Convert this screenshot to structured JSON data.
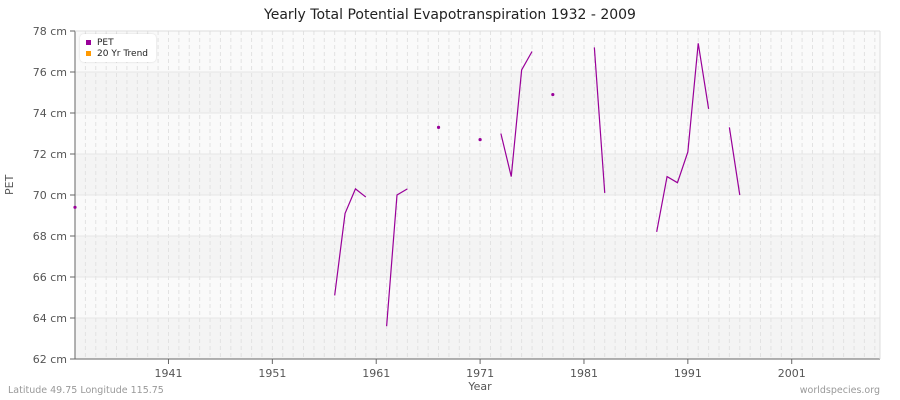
{
  "title": "Yearly Total Potential Evapotranspiration 1932 - 2009",
  "footer": {
    "left": "Latitude 49.75 Longitude 115.75",
    "right": "worldspecies.org"
  },
  "axis": {
    "xlabel": "Year",
    "ylabel": "PET"
  },
  "legend": [
    {
      "label": "PET",
      "color": "#990099"
    },
    {
      "label": "20 Yr Trend",
      "color": "#ff9900"
    }
  ],
  "chart_data": {
    "type": "line",
    "title": "Yearly Total Potential Evapotranspiration 1932 - 2009",
    "xlabel": "Year",
    "ylabel": "PET",
    "xlim": [
      1932,
      2009
    ],
    "ylim": [
      62,
      78
    ],
    "x_ticks": [
      1941,
      1951,
      1961,
      1971,
      1981,
      1991,
      2001
    ],
    "y_ticks": [
      "62 cm",
      "64 cm",
      "66 cm",
      "68 cm",
      "70 cm",
      "72 cm",
      "74 cm",
      "76 cm",
      "78 cm"
    ],
    "grid": true,
    "legend_position": "top-left",
    "series": [
      {
        "name": "PET",
        "color": "#990099",
        "segments": [
          [
            [
              1932,
              69.4
            ]
          ],
          [
            [
              1957,
              65.1
            ],
            [
              1958,
              69.1
            ],
            [
              1959,
              70.3
            ],
            [
              1960,
              69.9
            ]
          ],
          [
            [
              1962,
              63.6
            ],
            [
              1963,
              70.0
            ],
            [
              1964,
              70.3
            ]
          ],
          [
            [
              1967,
              73.3
            ]
          ],
          [
            [
              1971,
              72.7
            ]
          ],
          [
            [
              1973,
              73.0
            ],
            [
              1974,
              70.9
            ],
            [
              1975,
              76.1
            ],
            [
              1976,
              77.0
            ]
          ],
          [
            [
              1978,
              74.9
            ]
          ],
          [
            [
              1982,
              77.2
            ],
            [
              1983,
              70.1
            ]
          ],
          [
            [
              1988,
              68.2
            ],
            [
              1989,
              70.9
            ],
            [
              1990,
              70.6
            ],
            [
              1991,
              72.1
            ],
            [
              1992,
              77.4
            ],
            [
              1993,
              74.2
            ]
          ],
          [
            [
              1995,
              73.3
            ],
            [
              1996,
              70.0
            ]
          ]
        ]
      },
      {
        "name": "20 Yr Trend",
        "color": "#ff9900",
        "segments": []
      }
    ]
  }
}
